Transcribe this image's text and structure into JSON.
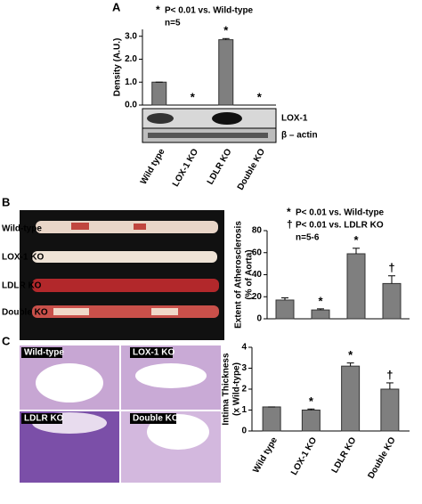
{
  "panel_labels": [
    "A",
    "B",
    "C"
  ],
  "blot": {
    "bands": [
      "LOX-1",
      "β – actin"
    ]
  },
  "aorta_photos": {
    "labels": [
      "Wild-type",
      "LOX-1 KO",
      "LDLR KO",
      "Double KO"
    ]
  },
  "histology_photos": {
    "labels": [
      "Wild-type",
      "LOX-1 KO",
      "LDLR KO",
      "Double KO"
    ]
  },
  "chart_data": [
    {
      "type": "bar",
      "ylabel": [
        "Density (A.U.)"
      ],
      "categories": [
        "Wild type",
        "LOX-1 KO",
        "LDLR KO",
        "Double KO"
      ],
      "series": [
        {
          "color": "#7f7f7f",
          "values": [
            1.0,
            0,
            2.85,
            0
          ],
          "errors": [
            0,
            0,
            0.05,
            0
          ],
          "markers": [
            null,
            "*",
            "*",
            "*"
          ]
        }
      ],
      "ylim": [
        0,
        3.3
      ],
      "yticks": [
        {
          "value": 0,
          "label": "0.0"
        },
        {
          "value": 1,
          "label": "1.0"
        },
        {
          "value": 2,
          "label": "2.0"
        },
        {
          "value": 3,
          "label": "3.0"
        }
      ],
      "legend": [
        {
          "symbol": "*",
          "text": "P< 0.01 vs. Wild-type"
        },
        {
          "text": "n=5"
        }
      ]
    },
    {
      "type": "bar",
      "ylabel": [
        "Extent of Atherosclerosis",
        "(% of Aorta)"
      ],
      "series": [
        {
          "color": "#7f7f7f",
          "values": [
            17,
            8,
            59,
            32
          ],
          "errors": [
            2,
            1,
            5,
            7
          ],
          "markers": [
            null,
            "*",
            "*",
            "†"
          ]
        }
      ],
      "ylim": [
        0,
        80
      ],
      "yticks": [
        0,
        20,
        40,
        60,
        80
      ],
      "legend": [
        {
          "symbol": "*",
          "text": "P< 0.01 vs. Wild-type"
        },
        {
          "symbol": "†",
          "text": "P< 0.01  vs. LDLR KO"
        },
        {
          "text": "n=5-6"
        }
      ]
    },
    {
      "type": "bar",
      "ylabel": [
        "Intima Thickness",
        "(x Wild-type)"
      ],
      "categories": [
        "Wild type",
        "LOX-1 KO",
        "LDLR KO",
        "Double KO"
      ],
      "series": [
        {
          "color": "#7f7f7f",
          "values": [
            1.15,
            1.0,
            3.1,
            2.0
          ],
          "errors": [
            0,
            0.05,
            0.15,
            0.3
          ],
          "markers": [
            null,
            "*",
            "*",
            "†"
          ]
        }
      ],
      "ylim": [
        0,
        4
      ],
      "yticks": [
        0,
        1,
        2,
        3,
        4
      ]
    }
  ]
}
